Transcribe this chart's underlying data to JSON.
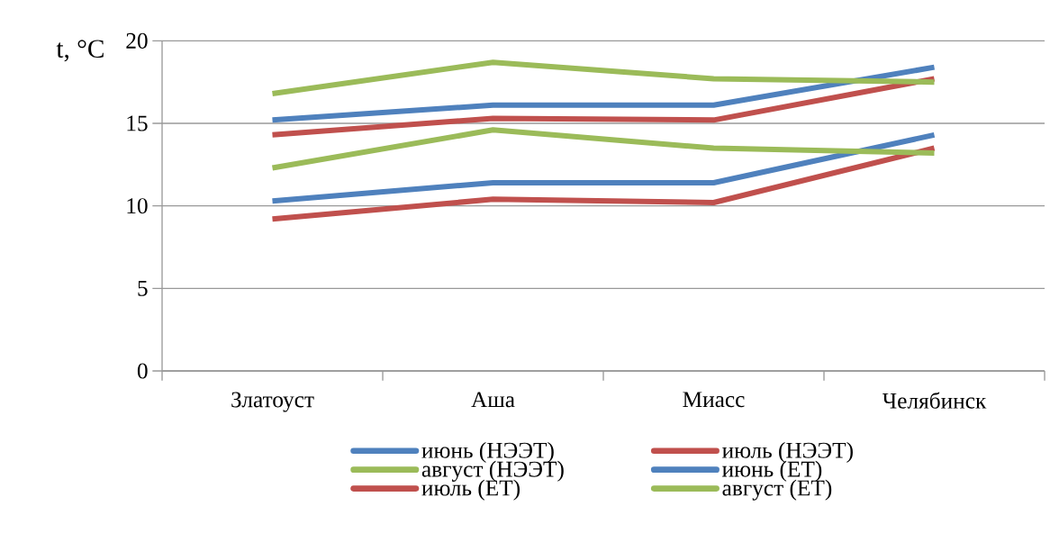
{
  "chart_data": {
    "type": "line",
    "ylabel": "t, °C",
    "categories": [
      "Златоуст",
      "Аша",
      "Миасс",
      "Челябинск"
    ],
    "series": [
      {
        "name": "июнь (НЭЭТ)",
        "color": "#4f81bd",
        "values": [
          15.2,
          16.1,
          16.1,
          18.4
        ]
      },
      {
        "name": "июль (НЭЭТ)",
        "color": "#c0504d",
        "values": [
          14.3,
          15.3,
          15.2,
          17.7
        ]
      },
      {
        "name": "август (НЭЭТ)",
        "color": "#9bbb59",
        "values": [
          16.8,
          18.7,
          17.7,
          17.5
        ]
      },
      {
        "name": "июнь (ЕТ)",
        "color": "#4f81bd",
        "values": [
          10.3,
          11.4,
          11.4,
          14.3
        ]
      },
      {
        "name": "июль (ЕТ)",
        "color": "#c0504d",
        "values": [
          9.2,
          10.4,
          10.2,
          13.5
        ]
      },
      {
        "name": "август (ЕТ)",
        "color": "#9bbb59",
        "values": [
          12.3,
          14.6,
          13.5,
          13.2
        ]
      }
    ],
    "ylim": [
      0,
      20
    ],
    "yticks": [
      0,
      5,
      10,
      15,
      20
    ],
    "grid": "y",
    "legend": "bottom",
    "marker": "none",
    "line_style": "solid"
  }
}
